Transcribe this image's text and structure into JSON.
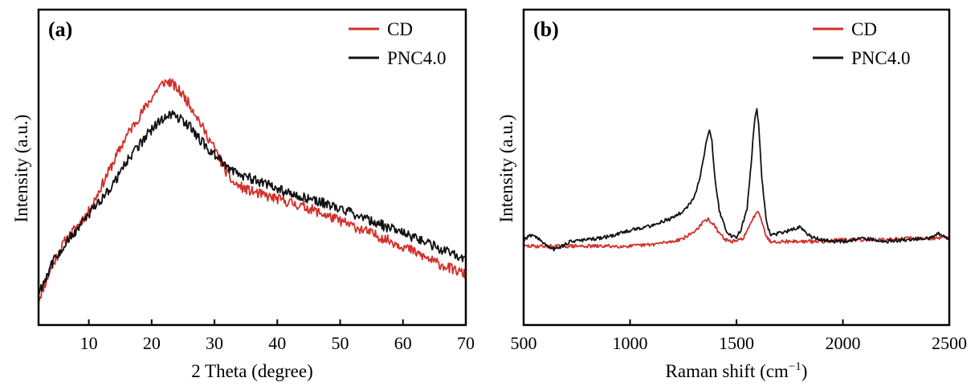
{
  "chart_data": [
    {
      "type": "line",
      "panel_label": "(a)",
      "xlabel": "2 Theta (degree)",
      "ylabel": "Intensity (a.u.)",
      "xlim": [
        2,
        70
      ],
      "ylim": [
        0,
        100
      ],
      "xticks": [
        10,
        20,
        30,
        40,
        50,
        60,
        70
      ],
      "y_tick_labels": false,
      "legend_position": "top-right",
      "series": [
        {
          "name": "CD",
          "color": "#d3302a",
          "x": [
            2,
            4,
            6,
            8,
            10,
            12,
            14,
            16,
            18,
            20,
            21,
            22,
            23,
            24,
            25,
            26,
            27,
            28,
            30,
            31,
            32,
            33,
            35,
            38,
            40,
            45,
            50,
            55,
            60,
            65,
            70
          ],
          "y": [
            8,
            18,
            26,
            31,
            36,
            44,
            52,
            60,
            66,
            72,
            75,
            77,
            77,
            75,
            73,
            70,
            67,
            63,
            56,
            52,
            48,
            45,
            43,
            41,
            40,
            37,
            33,
            29,
            25,
            20,
            16
          ]
        },
        {
          "name": "PNC4.0",
          "color": "#111111",
          "x": [
            2,
            4,
            6,
            8,
            10,
            12,
            14,
            16,
            18,
            20,
            22,
            23,
            24,
            25,
            26,
            28,
            30,
            32,
            35,
            38,
            40,
            45,
            50,
            55,
            60,
            65,
            70
          ],
          "y": [
            10,
            19,
            25,
            30,
            35,
            40,
            45,
            52,
            57,
            62,
            66,
            67,
            66,
            65,
            63,
            58,
            54,
            50,
            47,
            45,
            43,
            40,
            37,
            33,
            29,
            25,
            21
          ]
        }
      ]
    },
    {
      "type": "line",
      "panel_label": "(b)",
      "xlabel": "Raman shift (cm",
      "xlabel_sup": "−1",
      "xlabel_end": ")",
      "ylabel": "Intensity (a.u.)",
      "xlim": [
        500,
        2500
      ],
      "ylim": [
        0,
        100
      ],
      "xticks": [
        500,
        1000,
        1500,
        2000,
        2500
      ],
      "y_tick_labels": false,
      "legend_position": "top-right",
      "series": [
        {
          "name": "CD",
          "color": "#d3302a",
          "x": [
            500,
            600,
            700,
            800,
            900,
            1000,
            1100,
            1200,
            1250,
            1300,
            1330,
            1350,
            1370,
            1390,
            1420,
            1450,
            1480,
            1500,
            1530,
            1560,
            1580,
            1600,
            1620,
            1640,
            1660,
            1700,
            1800,
            1900,
            2000,
            2100,
            2200,
            2300,
            2400,
            2500
          ],
          "y": [
            25,
            25,
            25,
            25,
            25,
            25,
            25.5,
            26.5,
            27.5,
            29.5,
            31.5,
            33,
            33.5,
            32,
            29,
            27,
            26.5,
            26.5,
            27.5,
            31,
            34,
            36.5,
            33,
            28,
            26.5,
            26.5,
            26.5,
            26.5,
            27,
            27,
            27,
            27.5,
            27.5,
            27.5
          ]
        },
        {
          "name": "PNC4.0",
          "color": "#111111",
          "x": [
            500,
            530,
            560,
            600,
            640,
            680,
            720,
            800,
            900,
            1000,
            1100,
            1200,
            1250,
            1300,
            1330,
            1350,
            1365,
            1375,
            1385,
            1400,
            1420,
            1450,
            1480,
            1500,
            1520,
            1550,
            1570,
            1585,
            1595,
            1605,
            1620,
            1640,
            1660,
            1700,
            1750,
            1800,
            1850,
            1900,
            1950,
            2000,
            2100,
            2200,
            2300,
            2400,
            2450,
            2480,
            2500
          ],
          "y": [
            27,
            28.5,
            28,
            25.5,
            24,
            25,
            26.5,
            27,
            28,
            30,
            31.5,
            34,
            36,
            40,
            47,
            55,
            60,
            62,
            58,
            46,
            36,
            30,
            28,
            28,
            30,
            37,
            52,
            65,
            69,
            63,
            46,
            33,
            28.5,
            29,
            30,
            31,
            28,
            27,
            26.5,
            26.5,
            27.5,
            26.5,
            27,
            27.5,
            29,
            28,
            27
          ]
        }
      ]
    }
  ]
}
